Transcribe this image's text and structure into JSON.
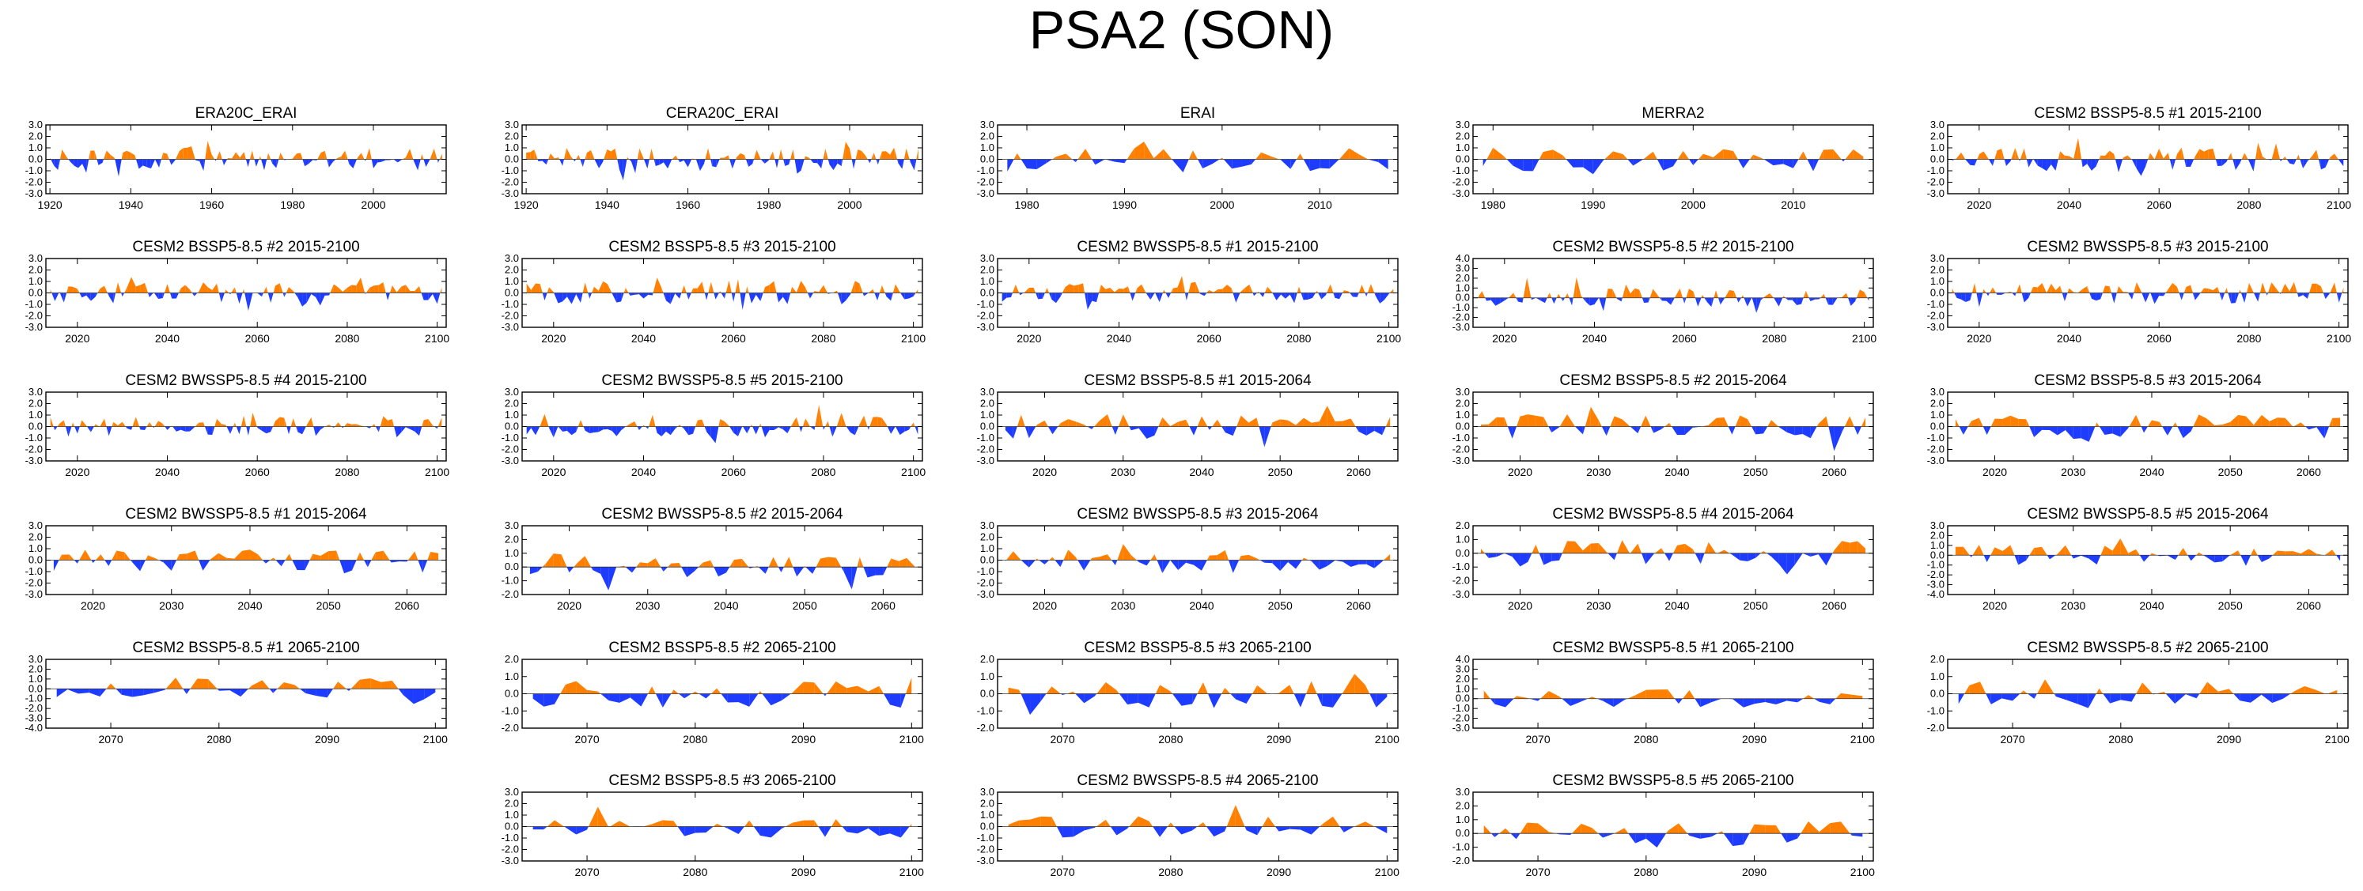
{
  "page_title": "PSA2 (SON)",
  "colors": {
    "positive": "#ff8000",
    "negative": "#1e3cff",
    "axis": "#000000"
  },
  "chart_data": [
    {
      "type": "area",
      "title": "ERA20C_ERAI",
      "x_range": [
        1919,
        2018
      ],
      "ylim": [
        -3,
        3
      ],
      "yticks": [
        "3.0",
        "2.0",
        "1.0",
        "0.0",
        "-1.0",
        "-2.0",
        "-3.0"
      ],
      "xticks": [
        1920,
        1940,
        1960,
        1980,
        2000
      ],
      "seed": 1,
      "amp": 0.85,
      "bias": 0
    },
    {
      "type": "area",
      "title": "CERA20C_ERAI",
      "x_range": [
        1919,
        2018
      ],
      "ylim": [
        -3,
        3
      ],
      "yticks": [
        "3.0",
        "2.0",
        "1.0",
        "0.0",
        "-1.0",
        "-2.0",
        "-3.0"
      ],
      "xticks": [
        1920,
        1940,
        1960,
        1980,
        2000
      ],
      "seed": 2,
      "amp": 0.85,
      "bias": 0
    },
    {
      "type": "area",
      "title": "ERAI",
      "x_range": [
        1977,
        2018
      ],
      "ylim": [
        -3,
        3
      ],
      "yticks": [
        "3.0",
        "2.0",
        "1.0",
        "0.0",
        "-1.0",
        "-2.0",
        "-3.0"
      ],
      "xticks": [
        1980,
        1990,
        2000,
        2010
      ],
      "seed": 3,
      "amp": 0.9,
      "bias": 0
    },
    {
      "type": "area",
      "title": "MERRA2",
      "x_range": [
        1978,
        2018
      ],
      "ylim": [
        -3,
        3
      ],
      "yticks": [
        "3.0",
        "2.0",
        "1.0",
        "0.0",
        "-1.0",
        "-2.0",
        "-3.0"
      ],
      "xticks": [
        1980,
        1990,
        2000,
        2010
      ],
      "seed": 4,
      "amp": 0.9,
      "bias": 0
    },
    {
      "type": "area",
      "title": "CESM2 BSSP5-8.5 #1 2015-2100",
      "x_range": [
        2013,
        2102
      ],
      "ylim": [
        -3,
        3
      ],
      "yticks": [
        "3.0",
        "2.0",
        "1.0",
        "0.0",
        "-1.0",
        "-2.0",
        "-3.0"
      ],
      "xticks": [
        2020,
        2040,
        2060,
        2080,
        2100
      ],
      "seed": 5,
      "amp": 0.9,
      "bias": 0
    },
    {
      "type": "area",
      "title": "CESM2 BSSP5-8.5 #2 2015-2100",
      "x_range": [
        2013,
        2102
      ],
      "ylim": [
        -3,
        3
      ],
      "yticks": [
        "3.0",
        "2.0",
        "1.0",
        "0.0",
        "-1.0",
        "-2.0",
        "-3.0"
      ],
      "xticks": [
        2020,
        2040,
        2060,
        2080,
        2100
      ],
      "seed": 6,
      "amp": 0.8,
      "bias": 0
    },
    {
      "type": "area",
      "title": "CESM2 BSSP5-8.5 #3 2015-2100",
      "x_range": [
        2013,
        2102
      ],
      "ylim": [
        -3,
        3
      ],
      "yticks": [
        "3.0",
        "2.0",
        "1.0",
        "0.0",
        "-1.0",
        "-2.0",
        "-3.0"
      ],
      "xticks": [
        2020,
        2040,
        2060,
        2080,
        2100
      ],
      "seed": 7,
      "amp": 0.9,
      "bias": 0
    },
    {
      "type": "area",
      "title": "CESM2 BWSSP5-8.5 #1 2015-2100",
      "x_range": [
        2013,
        2102
      ],
      "ylim": [
        -3,
        3
      ],
      "yticks": [
        "3.0",
        "2.0",
        "1.0",
        "0.0",
        "-1.0",
        "-2.0",
        "-3.0"
      ],
      "xticks": [
        2020,
        2040,
        2060,
        2080,
        2100
      ],
      "seed": 8,
      "amp": 0.8,
      "bias": 0
    },
    {
      "type": "area",
      "title": "CESM2 BWSSP5-8.5 #2 2015-2100",
      "x_range": [
        2013,
        2102
      ],
      "ylim": [
        -3,
        4
      ],
      "yticks": [
        "4.0",
        "3.0",
        "2.0",
        "1.0",
        "0.0",
        "-1.0",
        "-2.0",
        "-3.0"
      ],
      "xticks": [
        2020,
        2040,
        2060,
        2080,
        2100
      ],
      "seed": 9,
      "amp": 0.8,
      "bias": 0
    },
    {
      "type": "area",
      "title": "CESM2 BWSSP5-8.5 #3 2015-2100",
      "x_range": [
        2013,
        2102
      ],
      "ylim": [
        -3,
        3
      ],
      "yticks": [
        "3.0",
        "2.0",
        "1.0",
        "0.0",
        "-1.0",
        "-2.0",
        "-3.0"
      ],
      "xticks": [
        2020,
        2040,
        2060,
        2080,
        2100
      ],
      "seed": 10,
      "amp": 0.8,
      "bias": 0
    },
    {
      "type": "area",
      "title": "CESM2 BWSSP5-8.5 #4 2015-2100",
      "x_range": [
        2013,
        2102
      ],
      "ylim": [
        -3,
        3
      ],
      "yticks": [
        "3.0",
        "2.0",
        "1.0",
        "0.0",
        "-1.0",
        "-2.0",
        "-3.0"
      ],
      "xticks": [
        2020,
        2040,
        2060,
        2080,
        2100
      ],
      "seed": 11,
      "amp": 0.8,
      "bias": 0
    },
    {
      "type": "area",
      "title": "CESM2 BWSSP5-8.5 #5 2015-2100",
      "x_range": [
        2013,
        2102
      ],
      "ylim": [
        -3,
        3
      ],
      "yticks": [
        "3.0",
        "2.0",
        "1.0",
        "0.0",
        "-1.0",
        "-2.0",
        "-3.0"
      ],
      "xticks": [
        2020,
        2040,
        2060,
        2080,
        2100
      ],
      "seed": 12,
      "amp": 0.8,
      "bias": 0
    },
    {
      "type": "area",
      "title": "CESM2 BSSP5-8.5 #1 2015-2064",
      "x_range": [
        2014,
        2065
      ],
      "ylim": [
        -3,
        3
      ],
      "yticks": [
        "3.0",
        "2.0",
        "1.0",
        "0.0",
        "-1.0",
        "-2.0",
        "-3.0"
      ],
      "xticks": [
        2020,
        2030,
        2040,
        2050,
        2060
      ],
      "seed": 13,
      "amp": 0.9,
      "bias": 0
    },
    {
      "type": "area",
      "title": "CESM2 BSSP5-8.5 #2 2015-2064",
      "x_range": [
        2014,
        2065
      ],
      "ylim": [
        -3,
        3
      ],
      "yticks": [
        "3.0",
        "2.0",
        "1.0",
        "0.0",
        "-1.0",
        "-2.0",
        "-3.0"
      ],
      "xticks": [
        2020,
        2030,
        2040,
        2050,
        2060
      ],
      "seed": 14,
      "amp": 0.9,
      "bias": 0
    },
    {
      "type": "area",
      "title": "CESM2 BSSP5-8.5 #3 2015-2064",
      "x_range": [
        2014,
        2065
      ],
      "ylim": [
        -3,
        3
      ],
      "yticks": [
        "3.0",
        "2.0",
        "1.0",
        "0.0",
        "-1.0",
        "-2.0",
        "-3.0"
      ],
      "xticks": [
        2020,
        2030,
        2040,
        2050,
        2060
      ],
      "seed": 15,
      "amp": 0.9,
      "bias": 0
    },
    {
      "type": "area",
      "title": "CESM2 BWSSP5-8.5 #1 2015-2064",
      "x_range": [
        2014,
        2065
      ],
      "ylim": [
        -3,
        3
      ],
      "yticks": [
        "3.0",
        "2.0",
        "1.0",
        "0.0",
        "-1.0",
        "-2.0",
        "-3.0"
      ],
      "xticks": [
        2020,
        2030,
        2040,
        2050,
        2060
      ],
      "seed": 16,
      "amp": 0.8,
      "bias": 0
    },
    {
      "type": "area",
      "title": "CESM2 BWSSP5-8.5 #2 2015-2064",
      "x_range": [
        2014,
        2065
      ],
      "ylim": [
        -2,
        3
      ],
      "yticks": [
        "3.0",
        "2.0",
        "1.0",
        "0.0",
        "-1.0",
        "-2.0"
      ],
      "xticks": [
        2020,
        2030,
        2040,
        2050,
        2060
      ],
      "seed": 17,
      "amp": 0.8,
      "bias": 0
    },
    {
      "type": "area",
      "title": "CESM2 BWSSP5-8.5 #3 2015-2064",
      "x_range": [
        2014,
        2065
      ],
      "ylim": [
        -3,
        3
      ],
      "yticks": [
        "3.0",
        "2.0",
        "1.0",
        "0.0",
        "-1.0",
        "-2.0",
        "-3.0"
      ],
      "xticks": [
        2020,
        2030,
        2040,
        2050,
        2060
      ],
      "seed": 18,
      "amp": 0.8,
      "bias": 0
    },
    {
      "type": "area",
      "title": "CESM2 BWSSP5-8.5 #4 2015-2064",
      "x_range": [
        2014,
        2065
      ],
      "ylim": [
        -3,
        2
      ],
      "yticks": [
        "2.0",
        "1.0",
        "0.0",
        "-1.0",
        "-2.0",
        "-3.0"
      ],
      "xticks": [
        2020,
        2030,
        2040,
        2050,
        2060
      ],
      "seed": 19,
      "amp": 0.8,
      "bias": 0
    },
    {
      "type": "area",
      "title": "CESM2 BWSSP5-8.5 #5 2015-2064",
      "x_range": [
        2014,
        2065
      ],
      "ylim": [
        -4,
        3
      ],
      "yticks": [
        "3.0",
        "2.0",
        "1.0",
        "0.0",
        "-1.0",
        "-2.0",
        "-3.0",
        "-4.0"
      ],
      "xticks": [
        2020,
        2030,
        2040,
        2050,
        2060
      ],
      "seed": 20,
      "amp": 0.9,
      "bias": 0
    },
    {
      "type": "area",
      "title": "CESM2 BSSP5-8.5 #1 2065-2100",
      "x_range": [
        2064,
        2101
      ],
      "ylim": [
        -4,
        3
      ],
      "yticks": [
        "3.0",
        "2.0",
        "1.0",
        "0.0",
        "-1.0",
        "-2.0",
        "-3.0",
        "-4.0"
      ],
      "xticks": [
        2070,
        2080,
        2090,
        2100
      ],
      "seed": 21,
      "amp": 0.9,
      "bias": 0
    },
    {
      "type": "area",
      "title": "CESM2 BSSP5-8.5 #2 2065-2100",
      "x_range": [
        2064,
        2101
      ],
      "ylim": [
        -2,
        2
      ],
      "yticks": [
        "2.0",
        "1.0",
        "0.0",
        "-1.0",
        "-2.0"
      ],
      "xticks": [
        2070,
        2080,
        2090,
        2100
      ],
      "seed": 22,
      "amp": 0.7,
      "bias": 0
    },
    {
      "type": "area",
      "title": "CESM2 BSSP5-8.5 #3 2065-2100",
      "x_range": [
        2064,
        2101
      ],
      "ylim": [
        -2,
        2
      ],
      "yticks": [
        "2.0",
        "1.0",
        "0.0",
        "-1.0",
        "-2.0"
      ],
      "xticks": [
        2070,
        2080,
        2090,
        2100
      ],
      "seed": 23,
      "amp": 0.7,
      "bias": 0
    },
    {
      "type": "area",
      "title": "CESM2 BWSSP5-8.5 #1 2065-2100",
      "x_range": [
        2064,
        2101
      ],
      "ylim": [
        -3,
        4
      ],
      "yticks": [
        "4.0",
        "3.0",
        "2.0",
        "1.0",
        "0.0",
        "-1.0",
        "-2.0",
        "-3.0"
      ],
      "xticks": [
        2070,
        2080,
        2090,
        2100
      ],
      "seed": 24,
      "amp": 0.8,
      "bias": 0
    },
    {
      "type": "area",
      "title": "CESM2 BWSSP5-8.5 #2 2065-2100",
      "x_range": [
        2064,
        2101
      ],
      "ylim": [
        -2,
        2
      ],
      "yticks": [
        "2.0",
        "1.0",
        "0.0",
        "-1.0",
        "-2.0"
      ],
      "xticks": [
        2070,
        2080,
        2090,
        2100
      ],
      "seed": 25,
      "amp": 0.7,
      "bias": 0
    },
    {
      "type": "area",
      "title": "CESM2 BSSP5-8.5 #3 2065-2100",
      "x_range": [
        2064,
        2101
      ],
      "ylim": [
        -3,
        3
      ],
      "yticks": [
        "3.0",
        "2.0",
        "1.0",
        "0.0",
        "-1.0",
        "-2.0",
        "-3.0"
      ],
      "xticks": [
        2070,
        2080,
        2090,
        2100
      ],
      "seed": 26,
      "amp": 0.8,
      "bias": 0
    },
    {
      "type": "area",
      "title": "CESM2 BWSSP5-8.5 #4 2065-2100",
      "x_range": [
        2064,
        2101
      ],
      "ylim": [
        -3,
        3
      ],
      "yticks": [
        "3.0",
        "2.0",
        "1.0",
        "0.0",
        "-1.0",
        "-2.0",
        "-3.0"
      ],
      "xticks": [
        2070,
        2080,
        2090,
        2100
      ],
      "seed": 27,
      "amp": 0.8,
      "bias": 0
    },
    {
      "type": "area",
      "title": "CESM2 BWSSP5-8.5 #5 2065-2100",
      "x_range": [
        2064,
        2101
      ],
      "ylim": [
        -2,
        3
      ],
      "yticks": [
        "3.0",
        "2.0",
        "1.0",
        "0.0",
        "-1.0",
        "-2.0"
      ],
      "xticks": [
        2070,
        2080,
        2090,
        2100
      ],
      "seed": 28,
      "amp": 0.8,
      "bias": 0
    }
  ]
}
